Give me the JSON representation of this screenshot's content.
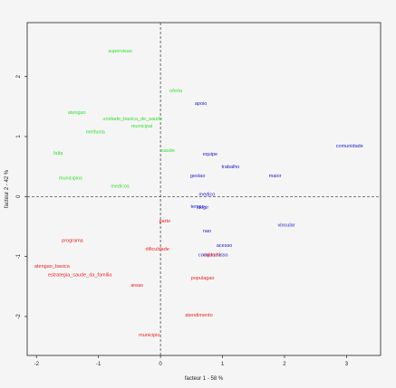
{
  "chart_data": {
    "type": "scatter",
    "xlabel": "facteur 1 - 58 %",
    "ylabel": "facteur 2 - 42 %",
    "xlim": [
      -2.15,
      3.55
    ],
    "ylim": [
      -2.65,
      2.9
    ],
    "xticks": [
      -2,
      -1,
      0,
      1,
      2,
      3
    ],
    "yticks": [
      -2,
      -1,
      0,
      1,
      2
    ],
    "reference_lines": {
      "x": 0,
      "y": 0,
      "style": "dashed"
    },
    "colors": {
      "green": "#33dd33",
      "blue": "#2222cc",
      "red": "#ee2222"
    },
    "groups": [
      {
        "color": "green",
        "points": [
          {
            "label": "supervisao",
            "x": -0.65,
            "y": 2.43
          },
          {
            "label": "oferta",
            "x": 0.25,
            "y": 1.77
          },
          {
            "label": "atengao",
            "x": -1.35,
            "y": 1.41
          },
          {
            "label": "unidade_basica_de_saude",
            "x": -0.45,
            "y": 1.3
          },
          {
            "label": "municipal",
            "x": -0.3,
            "y": 1.18
          },
          {
            "label": "melhoria",
            "x": -1.05,
            "y": 1.08
          },
          {
            "label": "falta",
            "x": -1.65,
            "y": 0.73
          },
          {
            "label": "saude",
            "x": 0.12,
            "y": 0.77
          },
          {
            "label": "municipios",
            "x": -1.45,
            "y": 0.31
          },
          {
            "label": "medicos",
            "x": -0.65,
            "y": 0.18
          }
        ]
      },
      {
        "color": "blue",
        "points": [
          {
            "label": "apoio",
            "x": 0.65,
            "y": 1.56
          },
          {
            "label": "comunidade",
            "x": 3.05,
            "y": 0.85
          },
          {
            "label": "equipe",
            "x": 0.8,
            "y": 0.71
          },
          {
            "label": "trabalho",
            "x": 1.13,
            "y": 0.5
          },
          {
            "label": "gestao",
            "x": 0.6,
            "y": 0.35
          },
          {
            "label": "maior",
            "x": 1.85,
            "y": 0.35
          },
          {
            "label": "medico",
            "x": 0.75,
            "y": 0.04
          },
          {
            "label": "tempo",
            "x": 0.6,
            "y": -0.16
          },
          {
            "label": "exigir",
            "x": 0.68,
            "y": -0.18
          },
          {
            "label": "vincular",
            "x": 2.03,
            "y": -0.47
          },
          {
            "label": "nao",
            "x": 0.75,
            "y": -0.57
          },
          {
            "label": "acesso",
            "x": 1.03,
            "y": -0.81
          },
          {
            "label": "compromisso",
            "x": 0.85,
            "y": -0.97
          }
        ]
      },
      {
        "color": "red",
        "points": [
          {
            "label": "parte",
            "x": 0.07,
            "y": -0.4
          },
          {
            "label": "programa",
            "x": -1.42,
            "y": -0.73
          },
          {
            "label": "dificuldade",
            "x": -0.05,
            "y": -0.87
          },
          {
            "label": "cuidado",
            "x": 0.83,
            "y": -0.97
          },
          {
            "label": "atengao_basica",
            "x": -1.75,
            "y": -1.16
          },
          {
            "label": "estrategia_saude_da_familia",
            "x": -1.3,
            "y": -1.3
          },
          {
            "label": "populagao",
            "x": 0.68,
            "y": -1.35
          },
          {
            "label": "areas",
            "x": -0.38,
            "y": -1.47
          },
          {
            "label": "atendimento",
            "x": 0.62,
            "y": -1.97
          },
          {
            "label": "municipio",
            "x": -0.18,
            "y": -2.3
          }
        ]
      }
    ]
  }
}
